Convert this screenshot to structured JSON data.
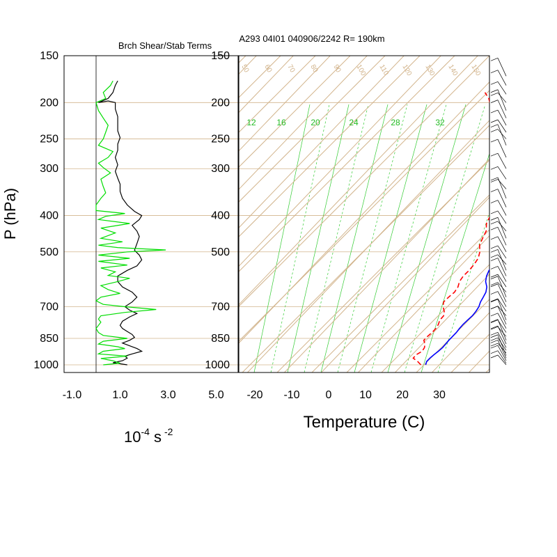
{
  "colors": {
    "background": "#ffffff",
    "skewt_lines": "#d2b48c",
    "mixing_ratio": "#33cc33",
    "temperature": "#0000ff",
    "dewpoint": "#ff0000",
    "shear": "#000000",
    "stability": "#00dd00"
  },
  "chart_data": [
    {
      "type": "line",
      "title": "Brch Shear/Stab Terms",
      "ylabel": "P (hPa)",
      "xlabel": "10",
      "xlabel_sup1": "-4",
      "xlabel_unit": " s",
      "xlabel_sup2": " -2",
      "y_scale": "log",
      "ylim": [
        1000,
        150
      ],
      "xlim": [
        -1.0,
        5.0
      ],
      "xticks": [
        "-1.0",
        "1.0",
        "3.0",
        "5.0"
      ],
      "yticks": [
        "150",
        "200",
        "250",
        "300",
        "400",
        "500",
        "700",
        "850",
        "1000"
      ],
      "grid": "horizontal lines at pressure ticks",
      "series": [
        {
          "color": "#000000",
          "points": [
            [
              1.3,
              1000
            ],
            [
              0.7,
              987
            ],
            [
              1.1,
              975
            ],
            [
              1.3,
              960
            ],
            [
              1.2,
              948
            ],
            [
              1.5,
              935
            ],
            [
              1.9,
              920
            ],
            [
              1.7,
              905
            ],
            [
              1.4,
              890
            ],
            [
              1.1,
              875
            ],
            [
              1.4,
              860
            ],
            [
              1.6,
              845
            ],
            [
              1.5,
              830
            ],
            [
              1.3,
              815
            ],
            [
              1.1,
              800
            ],
            [
              1.0,
              785
            ],
            [
              1.1,
              765
            ],
            [
              1.4,
              745
            ],
            [
              1.7,
              730
            ],
            [
              1.4,
              715
            ],
            [
              1.2,
              700
            ],
            [
              1.5,
              680
            ],
            [
              1.7,
              660
            ],
            [
              1.5,
              640
            ],
            [
              1.1,
              620
            ],
            [
              0.9,
              600
            ],
            [
              0.9,
              580
            ],
            [
              1.3,
              560
            ],
            [
              1.7,
              545
            ],
            [
              1.9,
              525
            ],
            [
              1.8,
              510
            ],
            [
              1.6,
              495
            ],
            [
              1.7,
              475
            ],
            [
              1.8,
              455
            ],
            [
              1.7,
              440
            ],
            [
              1.5,
              425
            ],
            [
              1.8,
              410
            ],
            [
              1.9,
              400
            ],
            [
              1.6,
              390
            ],
            [
              1.3,
              375
            ],
            [
              1.1,
              360
            ],
            [
              1.0,
              345
            ],
            [
              1.0,
              330
            ],
            [
              0.9,
              318
            ],
            [
              0.8,
              305
            ],
            [
              0.9,
              293
            ],
            [
              0.8,
              280
            ],
            [
              0.9,
              268
            ],
            [
              0.9,
              258
            ],
            [
              1.0,
              248
            ],
            [
              0.9,
              238
            ],
            [
              0.9,
              228
            ],
            [
              0.9,
              218
            ],
            [
              0.8,
              208
            ],
            [
              0.8,
              200
            ],
            [
              0.5,
              198
            ],
            [
              0.1,
              200
            ],
            [
              0.5,
              195
            ],
            [
              0.7,
              188
            ],
            [
              0.8,
              180
            ],
            [
              0.9,
              175
            ]
          ]
        },
        {
          "color": "#00dd00",
          "points": [
            [
              0.3,
              1000
            ],
            [
              1.0,
              990
            ],
            [
              0.7,
              975
            ],
            [
              0.2,
              962
            ],
            [
              1.3,
              948
            ],
            [
              0.1,
              935
            ],
            [
              0.3,
              920
            ],
            [
              1.2,
              905
            ],
            [
              0.9,
              895
            ],
            [
              0.1,
              880
            ],
            [
              0.3,
              865
            ],
            [
              1.3,
              850
            ],
            [
              0.3,
              835
            ],
            [
              0.1,
              820
            ],
            [
              0.0,
              800
            ],
            [
              0.1,
              785
            ],
            [
              0.2,
              770
            ],
            [
              0.1,
              755
            ],
            [
              0.2,
              740
            ],
            [
              1.2,
              725
            ],
            [
              2.5,
              712
            ],
            [
              1.2,
              700
            ],
            [
              0.3,
              690
            ],
            [
              0.0,
              675
            ],
            [
              0.2,
              660
            ],
            [
              1.0,
              645
            ],
            [
              0.5,
              630
            ],
            [
              0.2,
              615
            ],
            [
              0.9,
              600
            ],
            [
              1.4,
              588
            ],
            [
              0.5,
              578
            ],
            [
              0.8,
              565
            ],
            [
              0.2,
              552
            ],
            [
              1.3,
              542
            ],
            [
              0.1,
              530
            ],
            [
              1.4,
              520
            ],
            [
              0.1,
              510
            ],
            [
              1.3,
              500
            ],
            [
              2.9,
              494
            ],
            [
              0.9,
              487
            ],
            [
              0.1,
              480
            ],
            [
              1.1,
              470
            ],
            [
              0.2,
              460
            ],
            [
              0.8,
              445
            ],
            [
              0.2,
              432
            ],
            [
              1.4,
              420
            ],
            [
              0.1,
              410
            ],
            [
              0.4,
              402
            ],
            [
              1.2,
              395
            ],
            [
              0.0,
              388
            ],
            [
              0.0,
              375
            ],
            [
              0.2,
              360
            ],
            [
              0.4,
              348
            ],
            [
              0.3,
              335
            ],
            [
              0.2,
              320
            ],
            [
              0.6,
              308
            ],
            [
              0.3,
              298
            ],
            [
              0.1,
              290
            ],
            [
              0.5,
              280
            ],
            [
              0.7,
              270
            ],
            [
              0.1,
              260
            ],
            [
              0.3,
              250
            ],
            [
              0.4,
              240
            ],
            [
              0.5,
              230
            ],
            [
              0.3,
              220
            ],
            [
              0.1,
              210
            ],
            [
              0.0,
              200
            ],
            [
              0.4,
              195
            ],
            [
              0.3,
              188
            ],
            [
              0.6,
              180
            ],
            [
              0.7,
              175
            ]
          ]
        }
      ]
    },
    {
      "type": "line",
      "title": "A293 04I01 040906/2242 R= 190km",
      "xlabel": "Temperature (C)",
      "y_scale": "log",
      "ylim": [
        1000,
        150
      ],
      "xlim": [
        -25,
        43
      ],
      "skew": "skew-T log-P diagram",
      "xticks": [
        "-20",
        "-10",
        "0",
        "10",
        "20",
        "30"
      ],
      "yticks": [
        "150",
        "200",
        "250",
        "300",
        "400",
        "500",
        "700",
        "850",
        "1000"
      ],
      "mixing_ratio_labels": [
        "12",
        "16",
        "20",
        "24",
        "28",
        "32"
      ],
      "series": [
        {
          "color": "#0000ff",
          "points": [
            [
              26.3,
              1000
            ],
            [
              25.7,
              980
            ],
            [
              25.7,
              960
            ],
            [
              25.9,
              940
            ],
            [
              26.2,
              920
            ],
            [
              26.4,
              900
            ],
            [
              26.3,
              880
            ],
            [
              26.2,
              860
            ],
            [
              26.2,
              840
            ],
            [
              26.2,
              820
            ],
            [
              26.0,
              800
            ],
            [
              25.9,
              780
            ],
            [
              26.0,
              760
            ],
            [
              26.2,
              740
            ],
            [
              26.0,
              720
            ],
            [
              25.6,
              700
            ],
            [
              24.8,
              680
            ],
            [
              24.3,
              660
            ],
            [
              23.7,
              640
            ],
            [
              22.6,
              620
            ],
            [
              20.9,
              600
            ],
            [
              19.7,
              580
            ],
            [
              18.9,
              560
            ],
            [
              18.8,
              540
            ],
            [
              18.4,
              520
            ],
            [
              17.1,
              500
            ],
            [
              16.1,
              480
            ],
            [
              15.6,
              460
            ],
            [
              14.8,
              440
            ],
            [
              13.8,
              420
            ],
            [
              12.3,
              400
            ],
            [
              10.7,
              380
            ],
            [
              9.3,
              360
            ],
            [
              7.9,
              340
            ],
            [
              5.6,
              320
            ],
            [
              3.7,
              300
            ],
            [
              1.0,
              280
            ],
            [
              -2.0,
              260
            ],
            [
              -3.7,
              250
            ],
            [
              -7.3,
              230
            ],
            [
              -11.3,
              210
            ],
            [
              -15.8,
              190
            ],
            [
              -20.4,
              175
            ]
          ]
        },
        {
          "color": "#ff0000",
          "points": [
            [
              25.0,
              1000
            ],
            [
              23.3,
              980
            ],
            [
              21.2,
              960
            ],
            [
              21.1,
              940
            ],
            [
              21.8,
              920
            ],
            [
              21.5,
              900
            ],
            [
              20.7,
              880
            ],
            [
              19.4,
              860
            ],
            [
              19.4,
              840
            ],
            [
              19.6,
              820
            ],
            [
              19.6,
              800
            ],
            [
              19.2,
              780
            ],
            [
              18.5,
              760
            ],
            [
              18.4,
              740
            ],
            [
              17.4,
              720
            ],
            [
              15.9,
              700
            ],
            [
              14.8,
              680
            ],
            [
              14.9,
              660
            ],
            [
              15.2,
              640
            ],
            [
              14.8,
              620
            ],
            [
              13.8,
              600
            ],
            [
              13.4,
              580
            ],
            [
              13.5,
              560
            ],
            [
              13.3,
              540
            ],
            [
              12.8,
              520
            ],
            [
              11.6,
              500
            ],
            [
              9.8,
              480
            ],
            [
              8.8,
              460
            ],
            [
              7.9,
              440
            ],
            [
              6.0,
              420
            ],
            [
              5.0,
              400
            ],
            [
              4.0,
              380
            ],
            [
              2.2,
              360
            ],
            [
              0.8,
              340
            ],
            [
              -2.4,
              320
            ],
            [
              -4.9,
              300
            ],
            [
              -7.9,
              280
            ],
            [
              -11.1,
              260
            ],
            [
              -14.2,
              250
            ],
            [
              -18.0,
              230
            ],
            [
              -21.9,
              210
            ],
            [
              -25.9,
              195
            ],
            [
              -28.5,
              188
            ]
          ]
        }
      ]
    }
  ]
}
